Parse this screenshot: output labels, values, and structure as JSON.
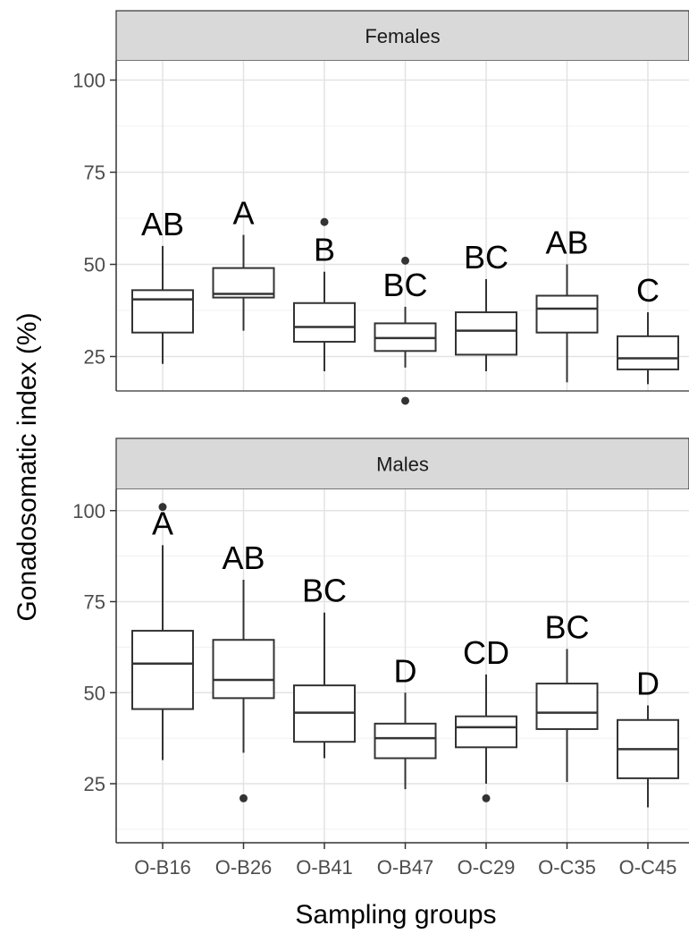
{
  "chart_data": {
    "type": "boxplot",
    "xlabel": "Sampling groups",
    "ylabel": "Gonadosomatic index (%)",
    "categories": [
      "O-B16",
      "O-B26",
      "O-B41",
      "O-B47",
      "O-C29",
      "O-C35",
      "O-C45"
    ],
    "yticks": [
      25,
      50,
      75,
      100
    ],
    "ylim": [
      10,
      105
    ],
    "grid": true,
    "facets": [
      {
        "label": "Females",
        "boxes": [
          {
            "category": "O-B16",
            "whisker_low": 23,
            "q1": 31.5,
            "median": 40.5,
            "q3": 43,
            "whisker_high": 55,
            "outliers": [],
            "letters": "AB"
          },
          {
            "category": "O-B26",
            "whisker_low": 32,
            "q1": 41,
            "median": 42,
            "q3": 49,
            "whisker_high": 58,
            "outliers": [],
            "letters": "A"
          },
          {
            "category": "O-B41",
            "whisker_low": 21,
            "q1": 29,
            "median": 33,
            "q3": 39.5,
            "whisker_high": 48,
            "outliers": [
              61.5
            ],
            "letters": "B"
          },
          {
            "category": "O-B47",
            "whisker_low": 22,
            "q1": 26.5,
            "median": 30,
            "q3": 34,
            "whisker_high": 38.5,
            "outliers": [
              51,
              13
            ],
            "letters": "BC"
          },
          {
            "category": "O-C29",
            "whisker_low": 21,
            "q1": 25.5,
            "median": 32,
            "q3": 37,
            "whisker_high": 46,
            "outliers": [],
            "letters": "BC"
          },
          {
            "category": "O-C35",
            "whisker_low": 18,
            "q1": 31.5,
            "median": 38,
            "q3": 41.5,
            "whisker_high": 50,
            "outliers": [],
            "letters": "AB"
          },
          {
            "category": "O-C45",
            "whisker_low": 17.5,
            "q1": 21.5,
            "median": 24.5,
            "q3": 30.5,
            "whisker_high": 37,
            "outliers": [],
            "letters": "C"
          }
        ]
      },
      {
        "label": "Males",
        "boxes": [
          {
            "category": "O-B16",
            "whisker_low": 31.5,
            "q1": 45.5,
            "median": 58,
            "q3": 67,
            "whisker_high": 90.5,
            "outliers": [
              101
            ],
            "letters": "A"
          },
          {
            "category": "O-B26",
            "whisker_low": 33.5,
            "q1": 48.5,
            "median": 53.5,
            "q3": 64.5,
            "whisker_high": 81,
            "outliers": [
              21
            ],
            "letters": "AB"
          },
          {
            "category": "O-B41",
            "whisker_low": 32,
            "q1": 36.5,
            "median": 44.5,
            "q3": 52,
            "whisker_high": 72,
            "outliers": [],
            "letters": "BC"
          },
          {
            "category": "O-B47",
            "whisker_low": 23.5,
            "q1": 32,
            "median": 37.5,
            "q3": 41.5,
            "whisker_high": 50,
            "outliers": [],
            "letters": "D"
          },
          {
            "category": "O-C29",
            "whisker_low": 25,
            "q1": 35,
            "median": 40.5,
            "q3": 43.5,
            "whisker_high": 55,
            "outliers": [
              21
            ],
            "letters": "CD"
          },
          {
            "category": "O-C35",
            "whisker_low": 25.5,
            "q1": 40,
            "median": 44.5,
            "q3": 52.5,
            "whisker_high": 62,
            "outliers": [],
            "letters": "BC"
          },
          {
            "category": "O-C45",
            "whisker_low": 18.5,
            "q1": 26.5,
            "median": 34.5,
            "q3": 42.5,
            "whisker_high": 46.5,
            "outliers": [],
            "letters": "D"
          }
        ]
      }
    ]
  }
}
